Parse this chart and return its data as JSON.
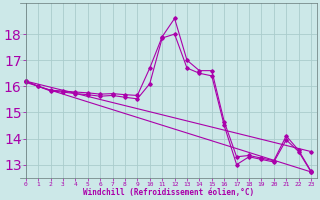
{
  "background_color": "#cce8e8",
  "line_color": "#aa00aa",
  "grid_color": "#aacccc",
  "xlabel": "Windchill (Refroidissement éolien,°C)",
  "xlim": [
    -0.5,
    23.5
  ],
  "ylim": [
    12.5,
    19.2
  ],
  "yticks": [
    13,
    14,
    15,
    16,
    17,
    18
  ],
  "xticks": [
    0,
    1,
    2,
    3,
    4,
    5,
    6,
    7,
    8,
    9,
    10,
    11,
    12,
    13,
    14,
    15,
    16,
    17,
    18,
    19,
    20,
    21,
    22,
    23
  ],
  "series": [
    {
      "x": [
        0,
        1,
        2,
        3,
        4,
        5,
        6,
        7,
        8,
        9,
        10,
        11,
        12,
        13,
        14,
        15,
        16,
        17,
        18,
        19,
        20,
        21,
        22,
        23
      ],
      "y": [
        16.2,
        16.0,
        15.85,
        15.82,
        15.78,
        15.75,
        15.7,
        15.72,
        15.68,
        15.65,
        16.7,
        17.9,
        18.6,
        17.0,
        16.6,
        16.6,
        14.65,
        13.3,
        13.35,
        13.25,
        13.15,
        14.1,
        13.55,
        12.75
      ]
    },
    {
      "x": [
        0,
        1,
        2,
        3,
        4,
        5,
        6,
        7,
        8,
        9,
        10,
        11,
        12,
        13,
        14,
        15,
        16,
        17,
        18,
        19,
        20,
        21,
        22,
        23
      ],
      "y": [
        16.2,
        16.0,
        15.82,
        15.78,
        15.72,
        15.68,
        15.62,
        15.65,
        15.58,
        15.52,
        16.1,
        17.85,
        18.0,
        16.7,
        16.5,
        16.4,
        14.5,
        13.0,
        13.3,
        13.2,
        13.1,
        13.95,
        13.5,
        12.72
      ]
    },
    {
      "x": [
        0,
        23
      ],
      "y": [
        16.2,
        13.5
      ]
    },
    {
      "x": [
        0,
        23
      ],
      "y": [
        16.15,
        12.72
      ]
    }
  ]
}
